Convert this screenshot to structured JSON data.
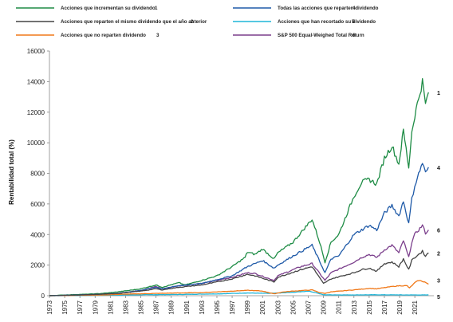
{
  "chart_data": {
    "type": "line",
    "title": "",
    "xlabel": "",
    "ylabel": "Rentabilidad total (%)",
    "xlim": [
      1973,
      2023.5
    ],
    "ylim": [
      0,
      16000
    ],
    "yticks": [
      0,
      2000,
      4000,
      6000,
      8000,
      10000,
      12000,
      14000,
      16000
    ],
    "ytick_labels": [
      "0",
      "2000",
      "4000",
      "6000",
      "8000",
      "10000",
      "12000",
      "14000",
      "16000"
    ],
    "xticks": [
      1973,
      1975,
      1977,
      1979,
      1981,
      1983,
      1985,
      1987,
      1989,
      1991,
      1993,
      1995,
      1997,
      1999,
      2001,
      2003,
      2005,
      2007,
      2009,
      2011,
      2013,
      2015,
      2017,
      2019,
      2021
    ],
    "xtick_labels": [
      "1973",
      "1975",
      "1977",
      "1979",
      "1981",
      "1983",
      "1985",
      "1987",
      "1989",
      "1991",
      "1993",
      "1995",
      "1997",
      "1999",
      "2001",
      "2003",
      "2005",
      "2007",
      "2009",
      "2011",
      "2013",
      "2015",
      "2017",
      "2019",
      "2021"
    ],
    "grid": false,
    "legend_placement": "top",
    "series": [
      {
        "name": "Acciones que incrementan su dividendo",
        "number": "1",
        "color": "#1e8c45",
        "x": [
          1973,
          1975,
          1978,
          1980,
          1982,
          1985,
          1987,
          1987.8,
          1990,
          1990.8,
          1993,
          1995,
          1997,
          1998.7,
          1999,
          2000,
          2001,
          2002.5,
          2003,
          2005,
          2007.5,
          2008.5,
          2009.2,
          2010,
          2011,
          2013,
          2014,
          2015,
          2016,
          2017,
          2018,
          2018.9,
          2019.5,
          2020.2,
          2020.6,
          2021,
          2022,
          2022.4,
          2022.8
        ],
        "y": [
          0,
          50,
          100,
          150,
          250,
          450,
          700,
          550,
          850,
          700,
          1000,
          1300,
          1900,
          2500,
          2850,
          2700,
          3050,
          2400,
          2800,
          3500,
          5000,
          3500,
          2200,
          3500,
          4000,
          6500,
          7400,
          7600,
          7300,
          9000,
          9800,
          8600,
          10800,
          8400,
          10700,
          11800,
          14000,
          12500,
          13300
        ]
      },
      {
        "name": "Acciones que reparten el mismo dividendo que el año anterior",
        "number": "2",
        "color": "#444444",
        "x": [
          1973,
          1978,
          1982,
          1985,
          1987,
          1987.8,
          1990,
          1993,
          1997,
          1999,
          2000,
          2002.5,
          2003,
          2006,
          2007.5,
          2009,
          2010,
          2013,
          2014,
          2015,
          2016,
          2017,
          2018,
          2018.9,
          2019.5,
          2020.2,
          2020.6,
          2021,
          2022,
          2022.4,
          2022.8
        ],
        "y": [
          0,
          60,
          150,
          300,
          450,
          380,
          550,
          700,
          1100,
          1400,
          1300,
          900,
          1200,
          1700,
          1900,
          800,
          1100,
          1500,
          1700,
          1800,
          1600,
          2100,
          2200,
          1900,
          2400,
          1700,
          2300,
          2500,
          2900,
          2600,
          2800
        ]
      },
      {
        "name": "Acciones que no reparten dividendo",
        "number": "3",
        "color": "#f07818",
        "x": [
          1973,
          1980,
          1983,
          1987,
          1990,
          1993,
          1997,
          1999,
          2000,
          2001,
          2002.5,
          2003.5,
          2005,
          2007.5,
          2008.5,
          2009.2,
          2010,
          2013,
          2015,
          2016,
          2018,
          2019,
          2020,
          2020.3,
          2021,
          2021.5,
          2022.3,
          2022.8
        ],
        "y": [
          0,
          50,
          100,
          150,
          180,
          200,
          300,
          350,
          330,
          300,
          120,
          230,
          300,
          380,
          200,
          150,
          250,
          380,
          480,
          450,
          600,
          650,
          650,
          500,
          850,
          1000,
          900,
          750
        ]
      },
      {
        "name": "Todas las acciones que reparten dividendo",
        "number": "4",
        "color": "#1f5aa8",
        "x": [
          1973,
          1978,
          1982,
          1985,
          1987,
          1987.8,
          1990,
          1993,
          1997,
          1999,
          2000,
          2001,
          2002.5,
          2003,
          2005,
          2007.5,
          2009.2,
          2010,
          2011,
          2013,
          2015,
          2016,
          2017,
          2018,
          2018.9,
          2019.5,
          2020.2,
          2020.6,
          2021,
          2022,
          2022.4,
          2022.8
        ],
        "y": [
          0,
          70,
          150,
          350,
          550,
          450,
          650,
          800,
          1300,
          1900,
          2100,
          2300,
          1800,
          2000,
          2600,
          3300,
          1500,
          2400,
          2600,
          4000,
          4600,
          4300,
          5400,
          5900,
          5200,
          6200,
          4700,
          6300,
          7200,
          8700,
          8000,
          8400
        ]
      },
      {
        "name": "Acciones que han recortado su dividendo",
        "number": "5",
        "color": "#1fb5d8",
        "x": [
          1973,
          1980,
          1985,
          1990,
          1995,
          1999,
          2002,
          2005,
          2007,
          2008,
          2009,
          2012,
          2016,
          2020,
          2022.8
        ],
        "y": [
          0,
          30,
          60,
          80,
          120,
          180,
          150,
          220,
          300,
          200,
          60,
          50,
          60,
          50,
          50
        ]
      },
      {
        "name": "S&P 500 Equal-Weighed Total Return",
        "number": "6",
        "color": "#7b3f8c",
        "x": [
          1973,
          1978,
          1982,
          1985,
          1987,
          1987.8,
          1990,
          1993,
          1997,
          1999,
          2000,
          2002.5,
          2003,
          2006,
          2007.5,
          2009.2,
          2010,
          2013,
          2014,
          2015,
          2016,
          2017,
          2018,
          2018.9,
          2019.5,
          2020.2,
          2020.6,
          2021,
          2022,
          2022.4,
          2022.8
        ],
        "y": [
          0,
          60,
          150,
          350,
          600,
          450,
          650,
          800,
          1200,
          1500,
          1450,
          1000,
          1300,
          1900,
          2100,
          1000,
          1500,
          2200,
          2500,
          2700,
          2500,
          3000,
          3300,
          2800,
          3600,
          2500,
          3500,
          4000,
          4600,
          4100,
          4300
        ]
      }
    ]
  }
}
